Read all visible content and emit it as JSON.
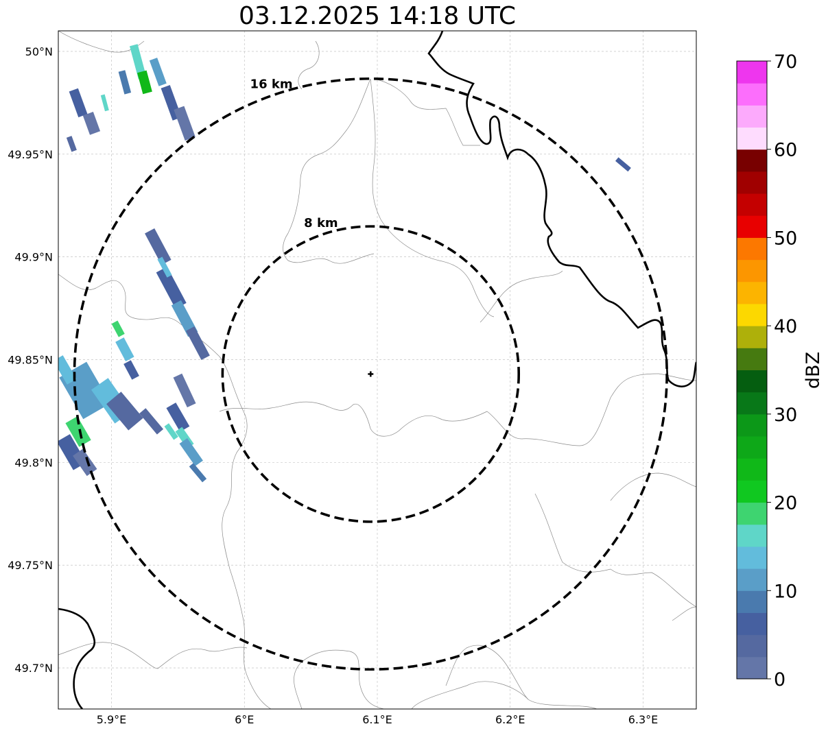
{
  "title": "03.12.2025 14:18 UTC",
  "lon_ticks": [
    {
      "value": 5.9,
      "label": "5.9°E"
    },
    {
      "value": 6.0,
      "label": "6°E"
    },
    {
      "value": 6.1,
      "label": "6.1°E"
    },
    {
      "value": 6.2,
      "label": "6.2°E"
    },
    {
      "value": 6.3,
      "label": "6.3°E"
    }
  ],
  "lat_ticks": [
    {
      "value": 50.0,
      "label": "50°N"
    },
    {
      "value": 49.95,
      "label": "49.95°N"
    },
    {
      "value": 49.9,
      "label": "49.9°N"
    },
    {
      "value": 49.85,
      "label": "49.85°N"
    },
    {
      "value": 49.8,
      "label": "49.8°N"
    },
    {
      "value": 49.75,
      "label": "49.75°N"
    },
    {
      "value": 49.7,
      "label": "49.7°N"
    }
  ],
  "lon_range": [
    5.86,
    6.34
  ],
  "lat_range": [
    49.68,
    50.01
  ],
  "radar_center": {
    "lon": 6.095,
    "lat": 49.843
  },
  "rings": [
    {
      "radius_km": 8,
      "label": "8 km"
    },
    {
      "radius_km": 16,
      "label": "16 km"
    }
  ],
  "colorbar": {
    "label": "dBZ",
    "min": 0,
    "max": 70,
    "ticks": [
      0,
      10,
      20,
      30,
      40,
      50,
      60,
      70
    ],
    "colors": [
      "#6476a8",
      "#5569a0",
      "#4660a0",
      "#4a7aae",
      "#5a9ec8",
      "#62bcdc",
      "#5fd6c8",
      "#3ed470",
      "#10c820",
      "#10b818",
      "#0ea818",
      "#0c9818",
      "#087818",
      "#055e10",
      "#467a10",
      "#aeb00a",
      "#fcd800",
      "#fcb400",
      "#fc9600",
      "#fc7800",
      "#e80000",
      "#c40000",
      "#a00000",
      "#780000",
      "#fedcfe",
      "#fcaafc",
      "#fc6efc",
      "#ee36ee"
    ]
  },
  "echoes": [
    {
      "lon": 5.92,
      "lat": 49.995,
      "w": 12,
      "h": 50,
      "angle": -15,
      "dbz": 16
    },
    {
      "lon": 5.925,
      "lat": 49.985,
      "w": 14,
      "h": 32,
      "angle": -15,
      "dbz": 24
    },
    {
      "lon": 5.935,
      "lat": 49.99,
      "w": 12,
      "h": 40,
      "angle": -20,
      "dbz": 12
    },
    {
      "lon": 5.945,
      "lat": 49.975,
      "w": 14,
      "h": 50,
      "angle": -20,
      "dbz": 6
    },
    {
      "lon": 5.955,
      "lat": 49.965,
      "w": 16,
      "h": 48,
      "angle": -20,
      "dbz": 2
    },
    {
      "lon": 5.91,
      "lat": 49.985,
      "w": 10,
      "h": 34,
      "angle": -15,
      "dbz": 8
    },
    {
      "lon": 5.875,
      "lat": 49.975,
      "w": 14,
      "h": 40,
      "angle": -20,
      "dbz": 6
    },
    {
      "lon": 5.885,
      "lat": 49.965,
      "w": 16,
      "h": 30,
      "angle": -20,
      "dbz": 2
    },
    {
      "lon": 5.895,
      "lat": 49.975,
      "w": 6,
      "h": 24,
      "angle": -15,
      "dbz": 17
    },
    {
      "lon": 5.87,
      "lat": 49.955,
      "w": 8,
      "h": 22,
      "angle": -20,
      "dbz": 4
    },
    {
      "lon": 6.285,
      "lat": 49.945,
      "w": 7,
      "h": 24,
      "angle": -50,
      "dbz": 5
    },
    {
      "lon": 5.935,
      "lat": 49.905,
      "w": 16,
      "h": 52,
      "angle": -28,
      "dbz": 4
    },
    {
      "lon": 5.945,
      "lat": 49.885,
      "w": 18,
      "h": 60,
      "angle": -28,
      "dbz": 6
    },
    {
      "lon": 5.955,
      "lat": 49.87,
      "w": 16,
      "h": 52,
      "angle": -28,
      "dbz": 12
    },
    {
      "lon": 5.965,
      "lat": 49.858,
      "w": 14,
      "h": 48,
      "angle": -28,
      "dbz": 4
    },
    {
      "lon": 5.94,
      "lat": 49.895,
      "w": 8,
      "h": 30,
      "angle": -28,
      "dbz": 14
    },
    {
      "lon": 5.905,
      "lat": 49.865,
      "w": 10,
      "h": 22,
      "angle": -28,
      "dbz": 19
    },
    {
      "lon": 5.91,
      "lat": 49.855,
      "w": 14,
      "h": 32,
      "angle": -28,
      "dbz": 14
    },
    {
      "lon": 5.915,
      "lat": 49.845,
      "w": 12,
      "h": 26,
      "angle": -28,
      "dbz": 6
    },
    {
      "lon": 5.88,
      "lat": 49.835,
      "w": 46,
      "h": 70,
      "angle": -30,
      "dbz": 12
    },
    {
      "lon": 5.9,
      "lat": 49.83,
      "w": 30,
      "h": 60,
      "angle": -35,
      "dbz": 14
    },
    {
      "lon": 5.91,
      "lat": 49.825,
      "w": 28,
      "h": 50,
      "angle": -40,
      "dbz": 4
    },
    {
      "lon": 5.875,
      "lat": 49.815,
      "w": 20,
      "h": 40,
      "angle": -30,
      "dbz": 19
    },
    {
      "lon": 5.87,
      "lat": 49.805,
      "w": 22,
      "h": 48,
      "angle": -30,
      "dbz": 6
    },
    {
      "lon": 5.88,
      "lat": 49.8,
      "w": 18,
      "h": 36,
      "angle": -35,
      "dbz": 2
    },
    {
      "lon": 5.865,
      "lat": 49.845,
      "w": 16,
      "h": 40,
      "angle": -30,
      "dbz": 14
    },
    {
      "lon": 5.93,
      "lat": 49.82,
      "w": 12,
      "h": 40,
      "angle": -40,
      "dbz": 4
    },
    {
      "lon": 5.955,
      "lat": 49.835,
      "w": 14,
      "h": 48,
      "angle": -25,
      "dbz": 2
    },
    {
      "lon": 5.95,
      "lat": 49.822,
      "w": 16,
      "h": 40,
      "angle": -30,
      "dbz": 6
    },
    {
      "lon": 5.955,
      "lat": 49.812,
      "w": 12,
      "h": 30,
      "angle": -35,
      "dbz": 15
    },
    {
      "lon": 5.96,
      "lat": 49.805,
      "w": 14,
      "h": 40,
      "angle": -35,
      "dbz": 12
    },
    {
      "lon": 5.965,
      "lat": 49.795,
      "w": 8,
      "h": 30,
      "angle": -40,
      "dbz": 8
    },
    {
      "lon": 5.945,
      "lat": 49.815,
      "w": 8,
      "h": 24,
      "angle": -35,
      "dbz": 17
    }
  ]
}
